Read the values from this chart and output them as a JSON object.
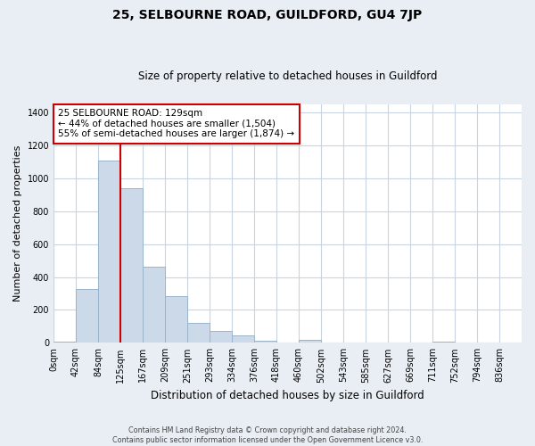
{
  "title": "25, SELBOURNE ROAD, GUILDFORD, GU4 7JP",
  "subtitle": "Size of property relative to detached houses in Guildford",
  "xlabel": "Distribution of detached houses by size in Guildford",
  "ylabel": "Number of detached properties",
  "bar_labels": [
    "0sqm",
    "42sqm",
    "84sqm",
    "125sqm",
    "167sqm",
    "209sqm",
    "251sqm",
    "293sqm",
    "334sqm",
    "376sqm",
    "418sqm",
    "460sqm",
    "502sqm",
    "543sqm",
    "585sqm",
    "627sqm",
    "669sqm",
    "711sqm",
    "752sqm",
    "794sqm",
    "836sqm"
  ],
  "bar_values": [
    5,
    325,
    1110,
    940,
    460,
    285,
    120,
    70,
    45,
    12,
    0,
    20,
    0,
    0,
    0,
    0,
    0,
    8,
    0,
    0,
    0
  ],
  "bar_color": "#ccd9e8",
  "bar_edge_color": "#9ab4cc",
  "vline_x": 3,
  "vline_color": "#cc0000",
  "annotation_text": "25 SELBOURNE ROAD: 129sqm\n← 44% of detached houses are smaller (1,504)\n55% of semi-detached houses are larger (1,874) →",
  "annotation_box_color": "#ffffff",
  "annotation_box_edge": "#cc0000",
  "ylim": [
    0,
    1450
  ],
  "yticks": [
    0,
    200,
    400,
    600,
    800,
    1000,
    1200,
    1400
  ],
  "footer_text": "Contains HM Land Registry data © Crown copyright and database right 2024.\nContains public sector information licensed under the Open Government Licence v3.0.",
  "bg_color": "#e8eef4",
  "plot_bg_color": "#ffffff",
  "grid_color": "#c8d4e0"
}
